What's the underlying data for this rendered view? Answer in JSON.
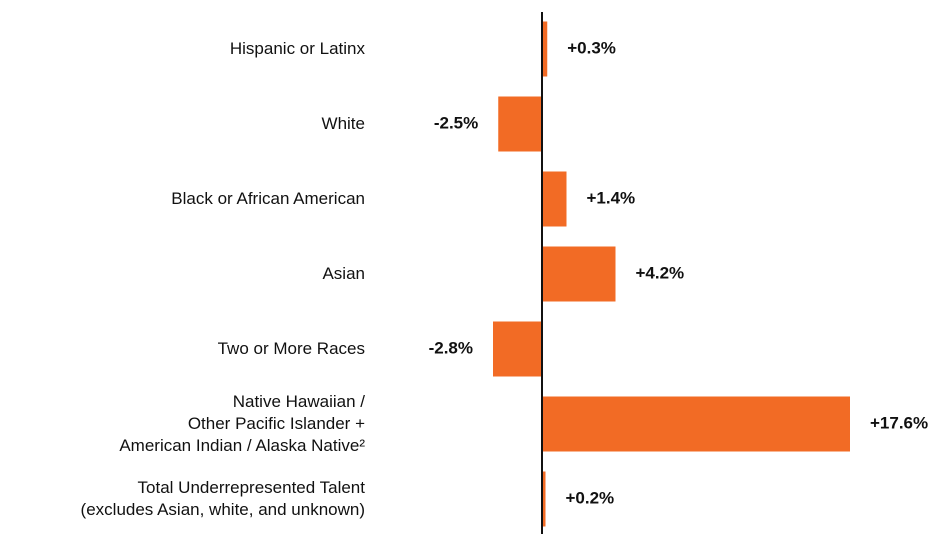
{
  "chart_data": {
    "type": "hbar",
    "categories": [
      "Hispanic or Latinx",
      "White",
      "Black or African American",
      "Asian",
      "Two or More Races",
      "Native Hawaiian /\nOther Pacific Islander +\nAmerican Indian / Alaska Native²",
      "Total Underrepresented Talent\n(excludes Asian, white, and unknown)"
    ],
    "values": [
      0.3,
      -2.5,
      1.4,
      4.2,
      -2.8,
      17.6,
      0.2
    ],
    "value_labels": [
      "+0.3%",
      "-2.5%",
      "+1.4%",
      "+4.2%",
      "-2.8%",
      "+17.6%",
      "+0.2%"
    ],
    "color": "#f26b25"
  }
}
